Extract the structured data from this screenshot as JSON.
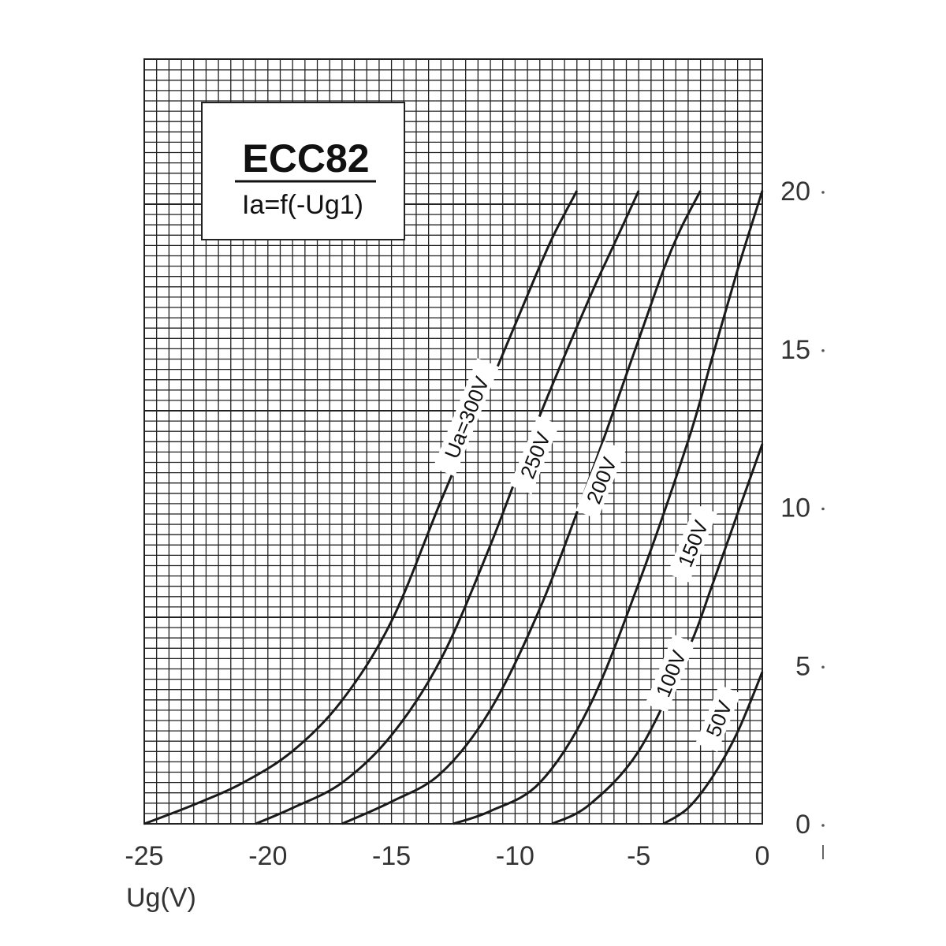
{
  "chart_data": {
    "type": "line",
    "title": "ECC82",
    "subtitle": "Ia=f(-Ug1)",
    "xlabel": "Ug(V)",
    "ylabel": "",
    "xlim": [
      -25,
      0
    ],
    "ylim": [
      0,
      20
    ],
    "grid": true,
    "x_ticks": [
      "-25",
      "-20",
      "-15",
      "-10",
      "-5",
      "0"
    ],
    "y_ticks": [
      "0",
      "5",
      "10",
      "15",
      "20"
    ],
    "series": [
      {
        "name": "Ua=300V",
        "x": [
          -25,
          -23,
          -21,
          -19,
          -17,
          -15,
          -13,
          -11,
          -9.5,
          -8.5,
          -7.5
        ],
        "y": [
          0,
          0.6,
          1.3,
          2.3,
          3.9,
          6.4,
          10.2,
          13.9,
          16.7,
          18.5,
          20
        ]
      },
      {
        "name": "250V",
        "x": [
          -20.5,
          -19,
          -17,
          -15,
          -13,
          -11,
          -9,
          -7,
          -6,
          -5
        ],
        "y": [
          0,
          0.5,
          1.3,
          2.8,
          5.2,
          8.8,
          12.9,
          16.6,
          18.3,
          20
        ]
      },
      {
        "name": "200V",
        "x": [
          -17,
          -15,
          -13,
          -11,
          -9,
          -7,
          -5,
          -4,
          -3.3,
          -2.5
        ],
        "y": [
          0,
          0.7,
          1.6,
          3.6,
          6.8,
          10.9,
          15.3,
          17.5,
          18.8,
          20
        ]
      },
      {
        "name": "150V",
        "x": [
          -12.5,
          -11,
          -9,
          -7,
          -5,
          -3,
          -2,
          -1,
          0
        ],
        "y": [
          0,
          0.4,
          1.3,
          3.7,
          7.6,
          12.1,
          14.8,
          17.5,
          20
        ]
      },
      {
        "name": "100V",
        "x": [
          -8.5,
          -7,
          -5,
          -3,
          -2,
          -1,
          0
        ],
        "y": [
          0,
          0.6,
          2.3,
          5.5,
          7.6,
          9.8,
          12
        ]
      },
      {
        "name": "50V",
        "x": [
          -4,
          -3,
          -2,
          -1,
          0
        ],
        "y": [
          0,
          0.5,
          1.5,
          2.9,
          4.8
        ]
      }
    ],
    "curve_labels": [
      "Ua=300V",
      "250V",
      "200V",
      "150V",
      "100V",
      "50V"
    ],
    "colors": {
      "line": "#1a1a1a",
      "grid": "#222222",
      "text": "#333333",
      "background": "#ffffff"
    }
  }
}
